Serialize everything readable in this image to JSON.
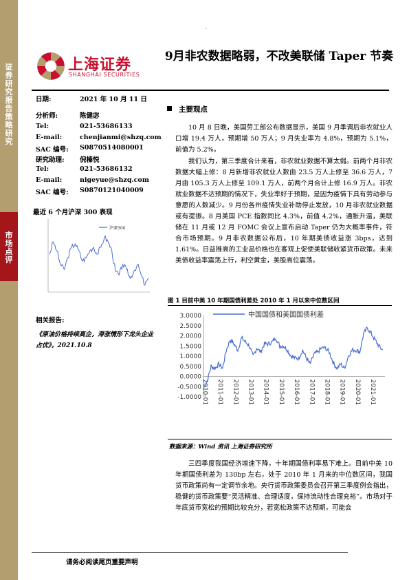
{
  "sidebar": {
    "top_label": "证券研究报告 策略研究",
    "mid_label": "市场点评"
  },
  "logo": {
    "cn": "上海证券",
    "en": "SHANGHAI SECURITIES"
  },
  "title": "9月非农数据略弱，不改美联储 Taper 节奏",
  "info": {
    "date_k": "日期:",
    "date_v": "2021 年 10 月 11 日",
    "analyst_k": "分析师:",
    "analyst_v": "陈健宓",
    "tel1_k": "Tel:",
    "tel1_v": "021-53686133",
    "email1_k": "E-mail:",
    "email1_v": "chenjianmi@shzq.com",
    "sac1_k": "SAC 编号:",
    "sac1_v": "S0870514080001",
    "assist_k": "研究助理:",
    "assist_v": "倪榛悦",
    "tel2_k": "Tel:",
    "tel2_v": "021-53686132",
    "email2_k": "E-mail:",
    "email2_v": "nigeyue@shzq.com",
    "sac2_k": "SAC 编号:",
    "sac2_v": "S0870121040009"
  },
  "small_chart": {
    "label": "最近 6 个月沪深 300 表现",
    "legend": "沪深300"
  },
  "related": {
    "label": "相关报告:",
    "item": "《原油价格持续高企，滞涨情形下龙头企业占优》，2021.10.8"
  },
  "main": {
    "section_head": "主要观点",
    "p1": "10 月 8 日晚，美国劳工部公布数据显示，美国 9 月季调后非农就业人口增 19.4 万人，预期增 50 万人；9 月失业率为 4.8%，预期为 5.1%，前值为 5.2%。",
    "p2": "我们认为，第三季度合计来看，非农就业数据不算太弱。前两个月非农数据大幅上修：8 月新增非农就业人数由 23.5 万人上修至 36.6 万人，7 月由 105.3 万人上修至 109.1 万人，前两个月合计上修 16.9 万人。非农就业数据不达预期的情况下，失业率好于预期，是因为疫情下具有劳动参与意愿的人数减少。9 月份各州疫情失业补助停止发放，10 月非农就业数据或有提振。8 月美国 PCE 指数同比 4.3%，前值 4.2%，通胀升温，美联储在 11 月或 12 月 FOMC 会议上宣布启动 Taper 仍为大概率事件，符合市场预期。9 月非农数据公布后，10 年期美债收益涨 3bps，达到 1.61%。日益推高的工业品价格也在客观上促使美联储收紧货币政策。未来美债收益率震荡上行，利空黄金，美股高位震荡。",
    "fig_title": "图 1  目前中美 10 年期国债利差处 2010 年 1 月以来中位数区间",
    "source": "数据来源：Wind 资讯  上海证券研究所",
    "p3": "三四季度我国经济增速下降，十年期国债利率易下难上。目前中美 10 年期国债利差为 130bp 左右，处于 2010 年 1 月来的中位数区间，我国货币政策尚有一定调节余地。央行货币政策委员会召开第三季度例会指出，稳健的货币政策要“灵活精准、合理适度，保持流动性合理充裕”。市场对于年底货币宽松的预期比较充分，若宽松政策不达预期，可能会"
  },
  "footer": "请务必阅读尾页重要声明",
  "chart_data": [
    {
      "type": "line",
      "series": [
        {
          "name": "中国国债和美国国债利差",
          "color": "#4a6fd3"
        }
      ],
      "ylim": [
        -1.0,
        3.0
      ],
      "yticks": [
        "-1.0000",
        "-0.5000",
        "0.0000",
        "0.5000",
        "1.0000",
        "1.5000",
        "2.0000",
        "2.5000",
        "3.0000"
      ],
      "xticks": [
        "2010-01",
        "2011-01",
        "2012-01",
        "2013-01",
        "2014-01",
        "2015-01",
        "2016-01",
        "2017-01",
        "2018-01",
        "2019-01",
        "2020-01",
        "2021-01"
      ],
      "x": [
        2010.0,
        2010.25,
        2010.5,
        2010.75,
        2011.0,
        2011.25,
        2011.5,
        2011.75,
        2012.0,
        2012.25,
        2012.5,
        2012.75,
        2013.0,
        2013.25,
        2013.5,
        2013.75,
        2014.0,
        2014.25,
        2014.5,
        2014.75,
        2015.0,
        2015.25,
        2015.5,
        2015.75,
        2016.0,
        2016.25,
        2016.5,
        2016.75,
        2017.0,
        2017.25,
        2017.5,
        2017.75,
        2018.0,
        2018.25,
        2018.5,
        2018.75,
        2019.0,
        2019.25,
        2019.5,
        2019.75,
        2020.0,
        2020.25,
        2020.5,
        2020.75,
        2021.0,
        2021.25,
        2021.5,
        2021.75
      ],
      "values": [
        -0.6,
        -0.2,
        0.5,
        0.4,
        0.6,
        0.4,
        1.3,
        1.8,
        1.6,
        1.3,
        1.9,
        1.7,
        1.5,
        1.0,
        1.4,
        1.2,
        1.6,
        1.6,
        1.7,
        1.9,
        1.5,
        1.5,
        1.3,
        1.0,
        0.9,
        0.9,
        1.3,
        0.9,
        0.6,
        1.1,
        1.2,
        1.4,
        1.4,
        1.2,
        0.7,
        0.4,
        0.6,
        0.4,
        1.0,
        1.3,
        1.3,
        1.2,
        2.1,
        2.4,
        2.1,
        1.8,
        1.5,
        1.3
      ]
    },
    {
      "type": "line",
      "series": [
        {
          "name": "沪深300",
          "color": "#4a6fd3"
        }
      ],
      "values": [
        5200,
        5380,
        5250,
        5050,
        4980,
        5150,
        5300,
        5350,
        5250,
        5100,
        5150,
        5250,
        5300,
        5200,
        5300,
        5450,
        5380,
        5250,
        4950,
        4900,
        5050,
        4980,
        4850,
        4950,
        5050,
        4900,
        4750,
        4850
      ]
    }
  ]
}
